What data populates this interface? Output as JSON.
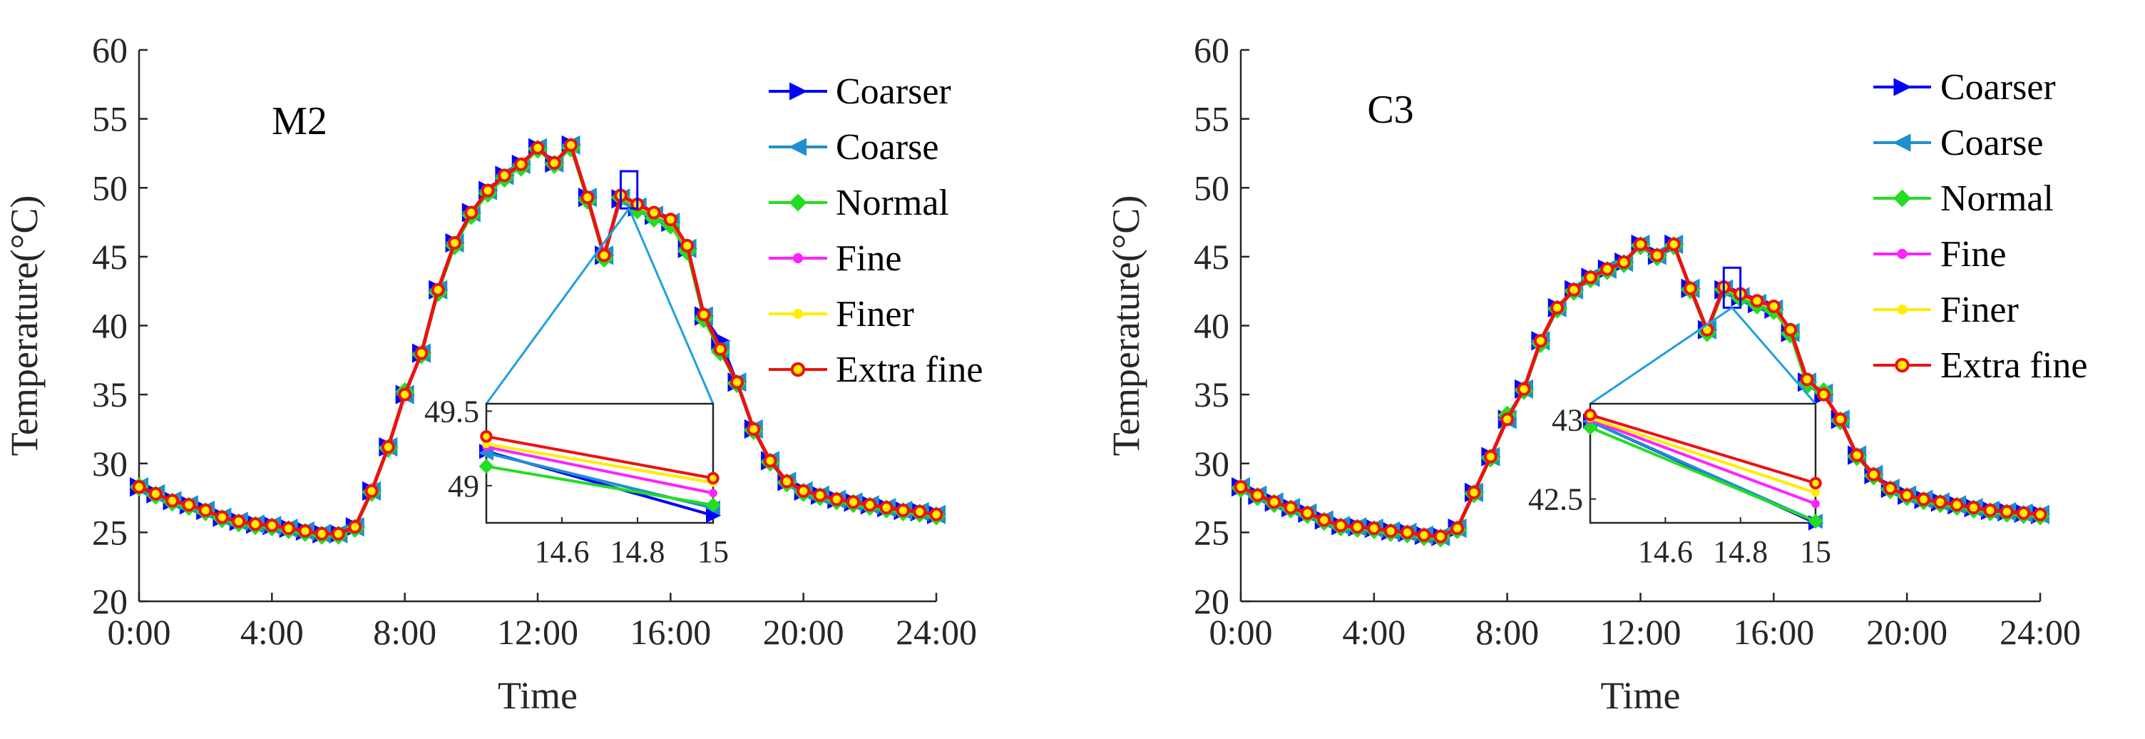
{
  "chart_data": [
    {
      "type": "line",
      "title": "M2",
      "xlabel": "Time",
      "ylabel": "Temperature(°C)",
      "xlim": [
        0,
        24
      ],
      "ylim": [
        20,
        60
      ],
      "x_ticks": [
        0,
        4,
        8,
        12,
        16,
        20,
        24
      ],
      "x_tick_labels": [
        "0:00",
        "4:00",
        "8:00",
        "12:00",
        "16:00",
        "20:00",
        "24:00"
      ],
      "y_ticks": [
        20,
        25,
        30,
        35,
        40,
        45,
        50,
        55,
        60
      ],
      "y_tick_labels": [
        "20",
        "25",
        "30",
        "35",
        "40",
        "45",
        "50",
        "55",
        "60"
      ],
      "legend_position": "top-right",
      "x": [
        0,
        0.5,
        1,
        1.5,
        2,
        2.5,
        3,
        3.5,
        4,
        4.5,
        5,
        5.5,
        6,
        6.5,
        7,
        7.5,
        8,
        8.5,
        9,
        9.5,
        10,
        10.5,
        11,
        11.5,
        12,
        12.5,
        13,
        13.5,
        14,
        14.5,
        15,
        15.5,
        16,
        16.5,
        17,
        17.5,
        18,
        18.5,
        19,
        19.5,
        20,
        20.5,
        21,
        21.5,
        22,
        22.5,
        23,
        23.5,
        24
      ],
      "series": [
        {
          "name": "Coarser",
          "color": "#0000ff",
          "marker": "triangle-right",
          "values": [
            28.3,
            27.8,
            27.3,
            27.0,
            26.6,
            26.1,
            25.8,
            25.6,
            25.5,
            25.3,
            25.1,
            24.9,
            24.9,
            25.4,
            28.0,
            31.2,
            35.0,
            38.0,
            42.6,
            46.0,
            48.2,
            49.8,
            50.9,
            51.7,
            52.9,
            51.8,
            53.1,
            49.3,
            45.1,
            49.2,
            48.6,
            48.0,
            47.5,
            45.6,
            40.7,
            38.9,
            35.9,
            32.5,
            30.2,
            28.7,
            28.0,
            27.7,
            27.4,
            27.2,
            27.0,
            26.8,
            26.6,
            26.5,
            26.3
          ]
        },
        {
          "name": "Coarse",
          "color": "#1f8fcf",
          "marker": "triangle-left",
          "values": [
            28.3,
            27.8,
            27.3,
            27.0,
            26.6,
            26.1,
            25.8,
            25.6,
            25.5,
            25.3,
            25.1,
            24.9,
            24.9,
            25.4,
            28.0,
            31.2,
            35.0,
            38.0,
            42.6,
            46.0,
            48.2,
            49.8,
            50.9,
            51.7,
            52.9,
            51.8,
            53.1,
            49.3,
            45.1,
            49.25,
            48.6,
            48.0,
            47.5,
            45.6,
            40.7,
            38.3,
            35.9,
            32.5,
            30.2,
            28.7,
            28.0,
            27.7,
            27.4,
            27.2,
            27.0,
            26.8,
            26.6,
            26.5,
            26.3
          ]
        },
        {
          "name": "Normal",
          "color": "#22dd22",
          "marker": "diamond",
          "values": [
            28.3,
            27.7,
            27.2,
            26.9,
            26.5,
            26.0,
            25.7,
            25.5,
            25.4,
            25.2,
            25.0,
            24.8,
            24.8,
            25.3,
            27.9,
            31.1,
            35.2,
            37.9,
            42.4,
            45.8,
            48.0,
            49.6,
            50.7,
            51.5,
            52.8,
            51.7,
            52.9,
            49.1,
            44.9,
            49.3,
            48.4,
            47.8,
            47.3,
            45.4,
            40.5,
            38.1,
            35.8,
            32.4,
            30.1,
            28.6,
            27.9,
            27.6,
            27.3,
            27.1,
            26.9,
            26.7,
            26.5,
            26.4,
            26.2
          ]
        },
        {
          "name": "Fine",
          "color": "#ff22ff",
          "marker": "circle",
          "values": [
            28.3,
            27.8,
            27.3,
            27.0,
            26.6,
            26.1,
            25.8,
            25.6,
            25.5,
            25.3,
            25.1,
            24.9,
            24.9,
            25.4,
            28.0,
            31.2,
            35.0,
            38.0,
            42.6,
            46.0,
            48.2,
            49.8,
            50.9,
            51.7,
            52.9,
            51.8,
            53.1,
            49.3,
            45.1,
            49.35,
            48.7,
            48.1,
            47.6,
            45.7,
            40.7,
            38.3,
            35.9,
            32.5,
            30.2,
            28.7,
            28.0,
            27.7,
            27.4,
            27.2,
            27.0,
            26.8,
            26.6,
            26.5,
            26.3
          ]
        },
        {
          "name": "Finer",
          "color": "#ffee00",
          "marker": "circle",
          "values": [
            28.3,
            27.8,
            27.3,
            27.0,
            26.6,
            26.1,
            25.8,
            25.6,
            25.5,
            25.3,
            25.1,
            24.9,
            24.9,
            25.4,
            28.0,
            31.2,
            35.0,
            38.0,
            42.6,
            46.0,
            48.2,
            49.8,
            50.9,
            51.7,
            52.9,
            51.8,
            53.1,
            49.3,
            45.1,
            49.4,
            48.7,
            48.1,
            47.6,
            45.7,
            40.7,
            38.3,
            35.9,
            32.5,
            30.2,
            28.7,
            28.0,
            27.7,
            27.4,
            27.2,
            27.0,
            26.8,
            26.6,
            26.5,
            26.3
          ]
        },
        {
          "name": "Extra fine",
          "color": "#ee1111",
          "marker": "circle-open",
          "values": [
            28.3,
            27.8,
            27.3,
            27.0,
            26.6,
            26.1,
            25.8,
            25.6,
            25.5,
            25.3,
            25.1,
            24.9,
            24.9,
            25.4,
            28.0,
            31.2,
            35.0,
            38.0,
            42.6,
            46.0,
            48.2,
            49.8,
            50.9,
            51.7,
            52.9,
            51.8,
            53.1,
            49.3,
            45.1,
            49.45,
            48.8,
            48.2,
            47.7,
            45.8,
            40.8,
            38.3,
            35.9,
            32.5,
            30.2,
            28.7,
            28.0,
            27.7,
            27.4,
            27.2,
            27.0,
            26.8,
            26.6,
            26.5,
            26.3
          ]
        }
      ],
      "zoom_box": {
        "x": [
          14.5,
          15.0
        ],
        "y": [
          48.5,
          51.2
        ]
      },
      "inset": {
        "xlim": [
          14.4,
          15.0
        ],
        "ylim": [
          48.75,
          49.55
        ],
        "x_ticks": [
          14.6,
          14.8,
          15.0
        ],
        "x_tick_labels": [
          "14.6",
          "14.8",
          "15"
        ],
        "y_ticks": [
          49,
          49.5
        ],
        "y_tick_labels": [
          "49",
          "49.5"
        ],
        "series": [
          {
            "name": "Coarser",
            "start": 49.23,
            "end": 48.8
          },
          {
            "name": "Coarse",
            "start": 49.22,
            "end": 48.85
          },
          {
            "name": "Normal",
            "start": 49.13,
            "end": 48.87
          },
          {
            "name": "Fine",
            "start": 49.26,
            "end": 48.95
          },
          {
            "name": "Finer",
            "start": 49.28,
            "end": 49.02
          },
          {
            "name": "Extra fine",
            "start": 49.33,
            "end": 49.05
          }
        ]
      }
    },
    {
      "type": "line",
      "title": "C3",
      "xlabel": "Time",
      "ylabel": "Temperature(°C)",
      "xlim": [
        0,
        24
      ],
      "ylim": [
        20,
        60
      ],
      "x_ticks": [
        0,
        4,
        8,
        12,
        16,
        20,
        24
      ],
      "x_tick_labels": [
        "0:00",
        "4:00",
        "8:00",
        "12:00",
        "16:00",
        "20:00",
        "24:00"
      ],
      "y_ticks": [
        20,
        25,
        30,
        35,
        40,
        45,
        50,
        55,
        60
      ],
      "y_tick_labels": [
        "20",
        "25",
        "30",
        "35",
        "40",
        "45",
        "50",
        "55",
        "60"
      ],
      "legend_position": "top-right",
      "x": [
        0,
        0.5,
        1,
        1.5,
        2,
        2.5,
        3,
        3.5,
        4,
        4.5,
        5,
        5.5,
        6,
        6.5,
        7,
        7.5,
        8,
        8.5,
        9,
        9.5,
        10,
        10.5,
        11,
        11.5,
        12,
        12.5,
        13,
        13.5,
        14,
        14.5,
        15,
        15.5,
        16,
        16.5,
        17,
        17.5,
        18,
        18.5,
        19,
        19.5,
        20,
        20.5,
        21,
        21.5,
        22,
        22.5,
        23,
        23.5,
        24
      ],
      "series": [
        {
          "name": "Coarser",
          "color": "#0000ff",
          "marker": "triangle-right",
          "values": [
            28.3,
            27.7,
            27.2,
            26.8,
            26.4,
            25.9,
            25.5,
            25.4,
            25.3,
            25.1,
            25.0,
            24.8,
            24.7,
            25.3,
            27.9,
            30.5,
            33.2,
            35.4,
            38.9,
            41.3,
            42.6,
            43.5,
            44.1,
            44.6,
            45.9,
            45.1,
            45.9,
            42.7,
            39.7,
            42.6,
            42.1,
            41.6,
            41.2,
            39.5,
            35.9,
            35.0,
            33.2,
            30.6,
            29.2,
            28.2,
            27.7,
            27.4,
            27.2,
            27.0,
            26.8,
            26.6,
            26.5,
            26.4,
            26.3
          ]
        },
        {
          "name": "Coarse",
          "color": "#1f8fcf",
          "marker": "triangle-left",
          "values": [
            28.3,
            27.7,
            27.2,
            26.8,
            26.4,
            25.9,
            25.5,
            25.4,
            25.3,
            25.1,
            25.0,
            24.8,
            24.7,
            25.3,
            27.9,
            30.5,
            33.2,
            35.4,
            38.9,
            41.3,
            42.6,
            43.5,
            44.1,
            44.6,
            45.9,
            45.1,
            45.9,
            42.7,
            39.7,
            42.65,
            42.1,
            41.6,
            41.2,
            39.5,
            35.9,
            35.1,
            33.2,
            30.6,
            29.2,
            28.2,
            27.7,
            27.4,
            27.2,
            27.0,
            26.8,
            26.6,
            26.5,
            26.4,
            26.3
          ]
        },
        {
          "name": "Normal",
          "color": "#22dd22",
          "marker": "diamond",
          "values": [
            28.2,
            27.6,
            27.1,
            26.7,
            26.3,
            25.8,
            25.4,
            25.3,
            25.2,
            25.0,
            24.9,
            24.7,
            24.6,
            25.2,
            27.8,
            30.4,
            33.5,
            35.3,
            38.7,
            41.2,
            42.5,
            43.4,
            44.0,
            44.5,
            45.8,
            45.0,
            45.8,
            42.6,
            39.5,
            42.6,
            42.0,
            41.5,
            41.1,
            39.4,
            35.7,
            35.2,
            33.1,
            30.5,
            29.1,
            28.1,
            27.6,
            27.3,
            27.1,
            26.9,
            26.7,
            26.5,
            26.4,
            26.3,
            26.2
          ]
        },
        {
          "name": "Fine",
          "color": "#ff22ff",
          "marker": "circle",
          "values": [
            28.3,
            27.7,
            27.2,
            26.8,
            26.4,
            25.9,
            25.5,
            25.4,
            25.3,
            25.1,
            25.0,
            24.8,
            24.7,
            25.3,
            27.9,
            30.5,
            33.2,
            35.4,
            38.9,
            41.3,
            42.6,
            43.5,
            44.1,
            44.6,
            45.9,
            45.1,
            45.9,
            42.7,
            39.7,
            42.7,
            42.2,
            41.7,
            41.3,
            39.6,
            36.0,
            35.0,
            33.2,
            30.6,
            29.2,
            28.2,
            27.7,
            27.4,
            27.2,
            27.0,
            26.8,
            26.6,
            26.5,
            26.4,
            26.3
          ]
        },
        {
          "name": "Finer",
          "color": "#ffee00",
          "marker": "circle",
          "values": [
            28.3,
            27.7,
            27.2,
            26.8,
            26.4,
            25.9,
            25.5,
            25.4,
            25.3,
            25.1,
            25.0,
            24.8,
            24.7,
            25.3,
            27.9,
            30.5,
            33.2,
            35.4,
            38.9,
            41.3,
            42.6,
            43.5,
            44.1,
            44.6,
            45.9,
            45.1,
            45.9,
            42.7,
            39.7,
            42.75,
            42.2,
            41.7,
            41.3,
            39.6,
            36.0,
            35.0,
            33.2,
            30.6,
            29.2,
            28.2,
            27.7,
            27.4,
            27.2,
            27.0,
            26.8,
            26.6,
            26.5,
            26.4,
            26.3
          ]
        },
        {
          "name": "Extra fine",
          "color": "#ee1111",
          "marker": "circle-open",
          "values": [
            28.3,
            27.7,
            27.2,
            26.8,
            26.4,
            25.9,
            25.5,
            25.4,
            25.3,
            25.1,
            25.0,
            24.8,
            24.7,
            25.3,
            27.9,
            30.5,
            33.2,
            35.4,
            38.9,
            41.3,
            42.6,
            43.5,
            44.1,
            44.6,
            45.9,
            45.1,
            45.9,
            42.7,
            39.7,
            42.8,
            42.3,
            41.8,
            41.4,
            39.7,
            36.1,
            35.0,
            33.2,
            30.6,
            29.2,
            28.2,
            27.7,
            27.4,
            27.2,
            27.0,
            26.8,
            26.6,
            26.5,
            26.4,
            26.3
          ]
        }
      ],
      "zoom_box": {
        "x": [
          14.5,
          15.0
        ],
        "y": [
          41.3,
          44.2
        ]
      },
      "inset": {
        "xlim": [
          14.4,
          15.0
        ],
        "ylim": [
          42.35,
          43.1
        ],
        "x_ticks": [
          14.6,
          14.8,
          15.0
        ],
        "x_tick_labels": [
          "14.6",
          "14.8",
          "15"
        ],
        "y_ticks": [
          42.5,
          43
        ],
        "y_tick_labels": [
          "42.5",
          "43"
        ],
        "series": [
          {
            "name": "Coarser",
            "start": 42.99,
            "end": 42.35
          },
          {
            "name": "Coarse",
            "start": 42.99,
            "end": 42.36
          },
          {
            "name": "Normal",
            "start": 42.95,
            "end": 42.36
          },
          {
            "name": "Fine",
            "start": 43.0,
            "end": 42.47
          },
          {
            "name": "Finer",
            "start": 43.01,
            "end": 42.54
          },
          {
            "name": "Extra fine",
            "start": 43.03,
            "end": 42.6
          }
        ]
      }
    }
  ]
}
